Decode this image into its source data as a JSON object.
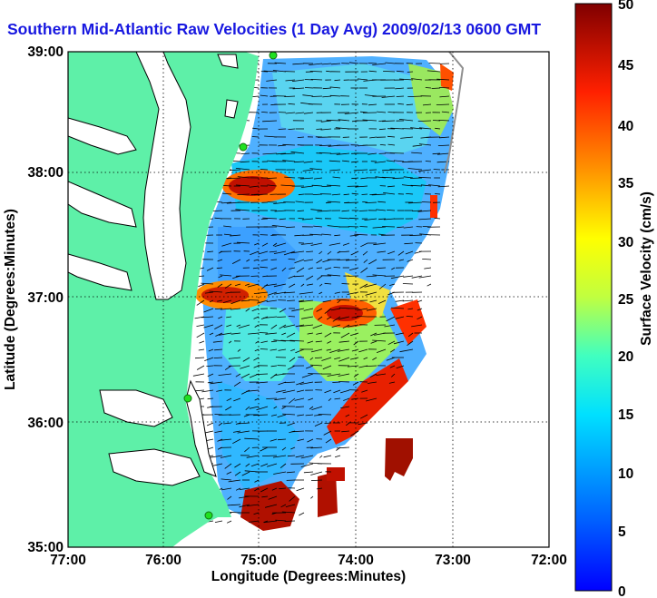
{
  "title": "Southern Mid-Atlantic Raw Velocities (1 Day Avg) 2009/02/13 0600 GMT",
  "map": {
    "xlabel": "Longitude (Degrees:Minutes)",
    "ylabel": "Latitude (Degrees:Minutes)",
    "lon_ticks": [
      "77:00",
      "76:00",
      "75:00",
      "74:00",
      "73:00",
      "72:00"
    ],
    "lat_ticks": [
      "39:00",
      "38:00",
      "37:00",
      "36:00",
      "35:00"
    ],
    "lon_range": [
      -77.0,
      -72.0
    ],
    "lat_range": [
      35.0,
      39.0
    ],
    "grid": "dotted",
    "land_color": "#5ef0a8",
    "coast_color": "#000000"
  },
  "colorbar": {
    "label": "Surface Velocity (cm/s)",
    "ticks": [
      "50",
      "45",
      "40",
      "35",
      "30",
      "25",
      "20",
      "15",
      "10",
      "5",
      "0"
    ],
    "min": 0,
    "max": 50,
    "colormap": "jet"
  },
  "stations": [
    {
      "lon": -74.87,
      "lat": 38.98
    },
    {
      "lon": -75.1,
      "lat": 38.25
    },
    {
      "lon": -75.75,
      "lat": 36.18
    },
    {
      "lon": -75.55,
      "lat": 35.25
    }
  ]
}
